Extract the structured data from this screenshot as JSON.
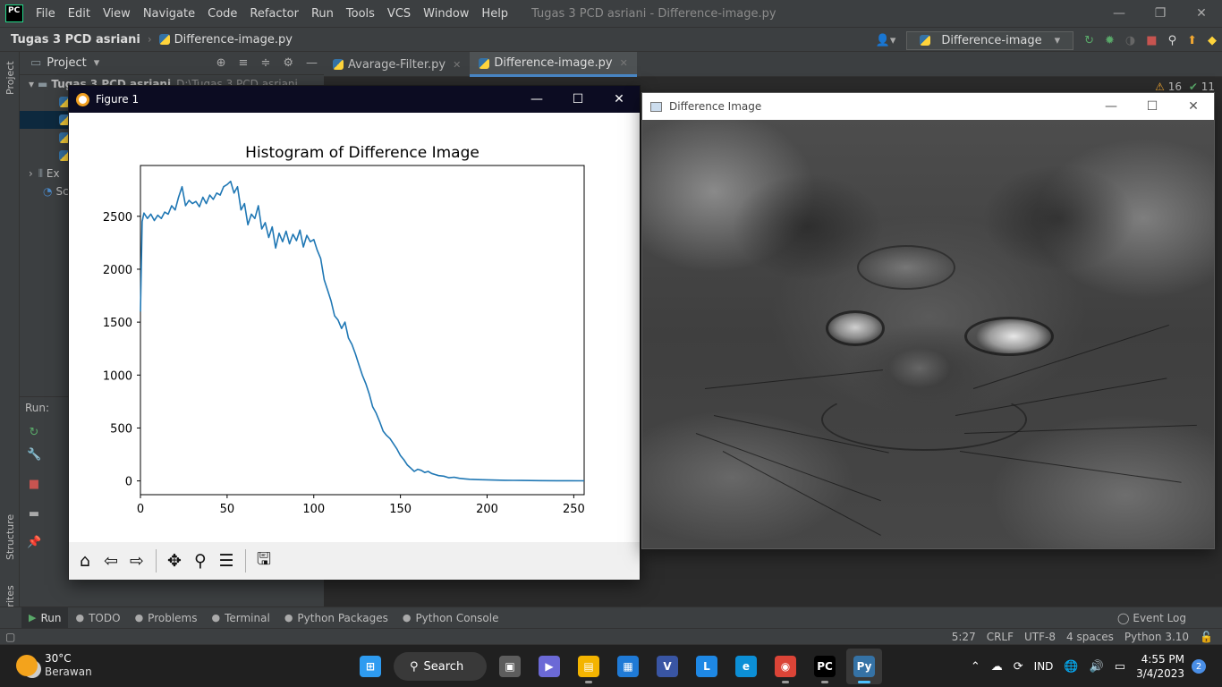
{
  "ide": {
    "app_logo": "PC",
    "menu": [
      "File",
      "Edit",
      "View",
      "Navigate",
      "Code",
      "Refactor",
      "Run",
      "Tools",
      "VCS",
      "Window",
      "Help"
    ],
    "window_title": "Tugas 3 PCD asriani - Difference-image.py",
    "breadcrumb_project": "Tugas 3 PCD asriani",
    "breadcrumb_file": "Difference-image.py",
    "run_config": "Difference-image",
    "project_label": "Project",
    "tree_items": [
      {
        "label": "Tugas 3 PCD asriani",
        "detail": "D:\\Tugas 3 PCD asriani"
      },
      {
        "label": "Ex"
      },
      {
        "label": "Sc"
      }
    ],
    "run_label": "Run:",
    "tabs": [
      {
        "label": "Avarage-Filter.py",
        "active": false
      },
      {
        "label": "Difference-image.py",
        "active": true
      }
    ],
    "inspections": {
      "warnings": "16",
      "checks": "11"
    },
    "left_strip": {
      "project": "Project",
      "structure": "Structure",
      "favorites": "Favorites"
    },
    "bottom_tools": [
      {
        "label": "Run",
        "icon": "play-icon",
        "active": true
      },
      {
        "label": "TODO",
        "icon": "list-icon",
        "active": false
      },
      {
        "label": "Problems",
        "icon": "info-icon",
        "active": false
      },
      {
        "label": "Terminal",
        "icon": "terminal-icon",
        "active": false
      },
      {
        "label": "Python Packages",
        "icon": "layers-icon",
        "active": false
      },
      {
        "label": "Python Console",
        "icon": "python-icon",
        "active": false
      }
    ],
    "event_log": "Event Log",
    "status": {
      "position": "5:27",
      "line_sep": "CRLF",
      "encoding": "UTF-8",
      "indent": "4 spaces",
      "interpreter": "Python 3.10"
    }
  },
  "figure_window": {
    "title": "Figure 1",
    "toolbar": [
      {
        "name": "home-icon",
        "glyph": "⌂"
      },
      {
        "name": "back-icon",
        "glyph": "⇦"
      },
      {
        "name": "forward-icon",
        "glyph": "⇨"
      },
      {
        "name": "pan-icon",
        "glyph": "✥"
      },
      {
        "name": "zoom-icon",
        "glyph": "⚲"
      },
      {
        "name": "configure-subplots-icon",
        "glyph": "☰"
      },
      {
        "name": "save-icon",
        "glyph": "🖫"
      }
    ]
  },
  "chart_data": {
    "type": "line",
    "title": "Histogram of Difference Image",
    "xlabel": "",
    "ylabel": "",
    "xlim": [
      0,
      256
    ],
    "ylim": [
      -130,
      2980
    ],
    "xticks": [
      0,
      50,
      100,
      150,
      200,
      250
    ],
    "yticks": [
      0,
      500,
      1000,
      1500,
      2000,
      2500
    ],
    "grid": false,
    "color": "#1f77b4",
    "series": [
      {
        "x": [
          0,
          1,
          2,
          4,
          6,
          8,
          10,
          12,
          14,
          16,
          18,
          20,
          22,
          24,
          26,
          28,
          30,
          32,
          34,
          36,
          38,
          40,
          42,
          44,
          46,
          48,
          50,
          52,
          54,
          56,
          58,
          60,
          62,
          64,
          66,
          68,
          70,
          72,
          74,
          76,
          78,
          80,
          82,
          84,
          86,
          88,
          90,
          92,
          94,
          96,
          98,
          100,
          102,
          104,
          106,
          108,
          110,
          112,
          114,
          116,
          118,
          120,
          122,
          124,
          126,
          128,
          130,
          132,
          134,
          136,
          138,
          140,
          142,
          144,
          146,
          148,
          150,
          152,
          154,
          156,
          158,
          160,
          162,
          164,
          166,
          168,
          170,
          172,
          175,
          178,
          181,
          184,
          187,
          190,
          195,
          200,
          205,
          210,
          215,
          220,
          230,
          240,
          256
        ],
        "y": [
          1600,
          2450,
          2530,
          2480,
          2520,
          2460,
          2510,
          2480,
          2540,
          2520,
          2600,
          2560,
          2680,
          2780,
          2600,
          2650,
          2620,
          2640,
          2590,
          2680,
          2620,
          2700,
          2660,
          2720,
          2700,
          2780,
          2800,
          2830,
          2720,
          2780,
          2560,
          2620,
          2420,
          2520,
          2480,
          2600,
          2380,
          2440,
          2300,
          2400,
          2200,
          2340,
          2260,
          2360,
          2240,
          2330,
          2270,
          2370,
          2210,
          2320,
          2260,
          2280,
          2180,
          2100,
          1900,
          1800,
          1700,
          1560,
          1520,
          1440,
          1500,
          1350,
          1290,
          1200,
          1100,
          1000,
          920,
          820,
          700,
          640,
          560,
          470,
          430,
          400,
          350,
          300,
          240,
          200,
          150,
          120,
          90,
          110,
          100,
          80,
          90,
          70,
          60,
          50,
          45,
          30,
          35,
          25,
          20,
          15,
          12,
          10,
          8,
          6,
          5,
          4,
          3,
          2,
          1
        ]
      }
    ]
  },
  "image_window": {
    "title": "Difference Image"
  },
  "taskbar": {
    "temperature": "30°C",
    "weather": "Berawan",
    "search": "Search",
    "language": "IND",
    "time": "4:55 PM",
    "date": "3/4/2023",
    "notifications": "2",
    "apps": [
      {
        "name": "windows-start-icon",
        "glyph": "⊞",
        "color": "#2e9bf0"
      },
      {
        "name": "task-view-icon",
        "glyph": "▣",
        "color": "#5d5d5d"
      },
      {
        "name": "teams-chat-icon",
        "glyph": "▶",
        "color": "#6b69d6"
      },
      {
        "name": "file-explorer-icon",
        "glyph": "▤",
        "color": "#f4b400"
      },
      {
        "name": "microsoft-store-icon",
        "glyph": "▦",
        "color": "#1f7ad6"
      },
      {
        "name": "visio-icon",
        "glyph": "V",
        "color": "#3955a3"
      },
      {
        "name": "l-app-icon",
        "glyph": "L",
        "color": "#1e88e5"
      },
      {
        "name": "edge-icon",
        "glyph": "e",
        "color": "#0c8fd6"
      },
      {
        "name": "chrome-icon",
        "glyph": "◉",
        "color": "#db4437"
      },
      {
        "name": "pycharm-icon",
        "glyph": "PC",
        "color": "#000000"
      },
      {
        "name": "python-icon",
        "glyph": "Py",
        "color": "#3572a5"
      }
    ]
  }
}
